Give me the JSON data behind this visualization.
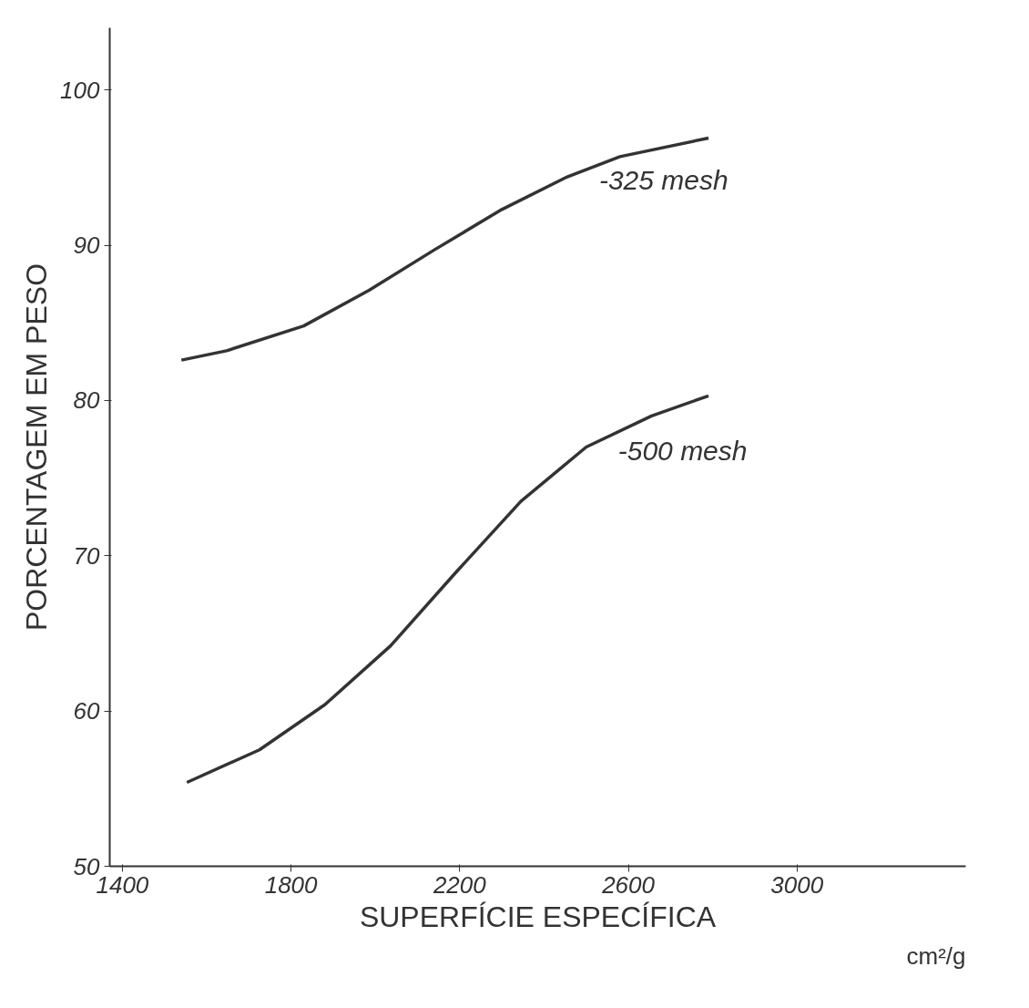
{
  "chart_data": {
    "type": "line",
    "xlabel": "SUPERFÍCIE ESPECÍFICA",
    "ylabel": "PORCENTAGEM EM PESO",
    "annotations": [
      "cm²/g"
    ],
    "xlim": [
      1370,
      3400
    ],
    "xticks": [
      1400,
      1800,
      2200,
      2600,
      3000
    ],
    "ylim": [
      50,
      104
    ],
    "yticks": [
      50,
      60,
      70,
      80,
      90,
      100
    ],
    "grid": false,
    "series": [
      {
        "name": "-325 mesh",
        "color": "#333333",
        "x": [
          1540,
          1647,
          1830,
          1985,
          2140,
          2300,
          2455,
          2580,
          2790
        ],
        "values": [
          82.6,
          83.2,
          84.8,
          87.1,
          89.7,
          92.3,
          94.4,
          95.7,
          96.9
        ]
      },
      {
        "name": "-500 mesh",
        "color": "#333333",
        "x": [
          1553,
          1725,
          1880,
          2036,
          2190,
          2345,
          2500,
          2655,
          2790
        ],
        "values": [
          55.4,
          57.5,
          60.4,
          64.2,
          68.9,
          73.5,
          77.0,
          79.0,
          80.3
        ]
      }
    ]
  }
}
